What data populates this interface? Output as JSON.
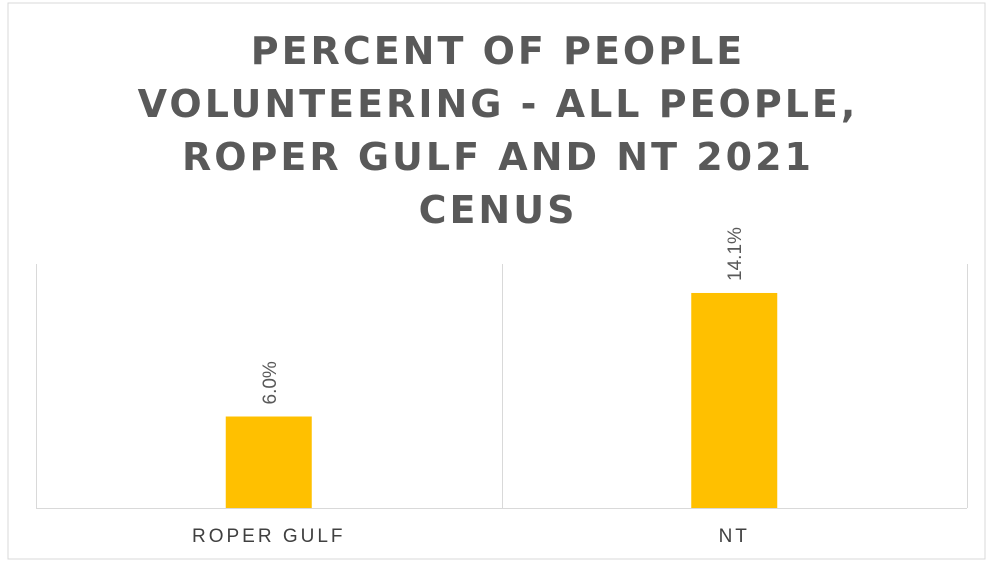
{
  "chart_data": {
    "type": "bar",
    "title": "PERCENT OF PEOPLE VOLUNTEERING - ALL PEOPLE, ROPER GULF AND NT 2021 CENUS",
    "title_lines": [
      "PERCENT OF PEOPLE",
      "VOLUNTEERING - ALL PEOPLE,",
      "ROPER GULF AND NT 2021",
      "CENUS"
    ],
    "categories": [
      "ROPER GULF",
      "NT"
    ],
    "values": [
      6.0,
      14.1
    ],
    "data_labels": [
      "6.0%",
      "14.1%"
    ],
    "ylim": [
      0,
      16
    ],
    "xlabel": "",
    "ylabel": "",
    "grid": "vertical category separators",
    "legend": "none",
    "bar_color": "#FFC000"
  }
}
